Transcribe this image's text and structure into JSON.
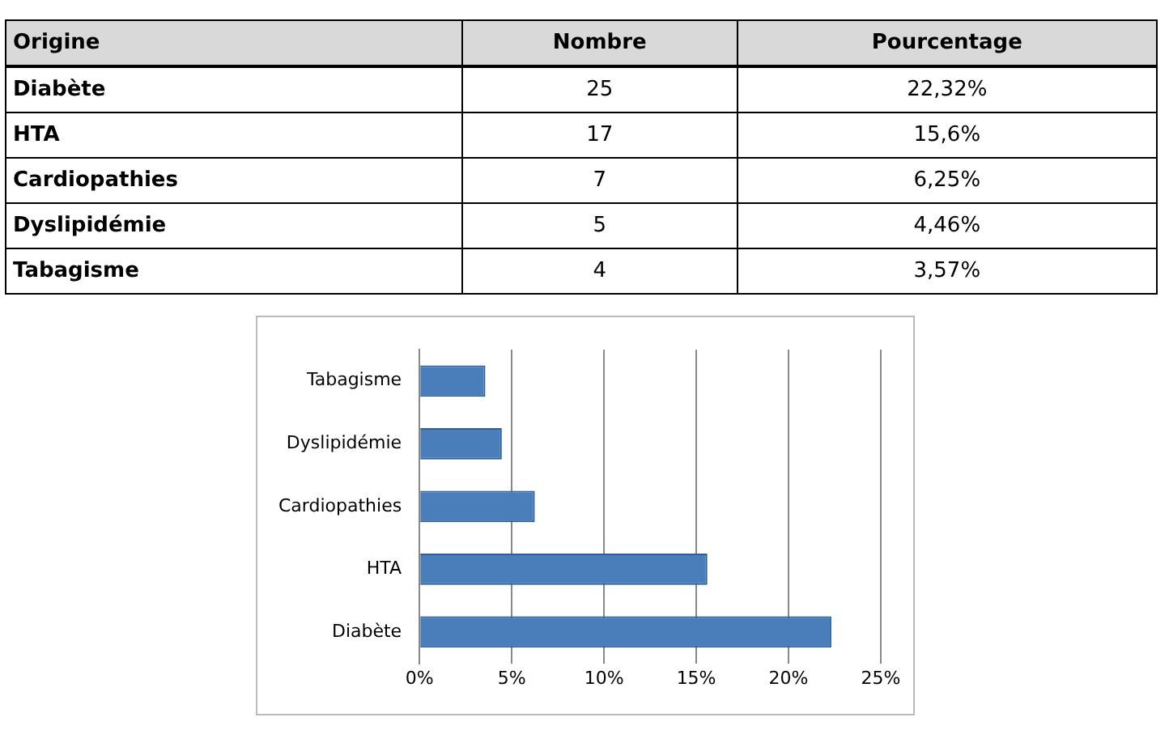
{
  "chart_data": [
    {
      "type": "other",
      "ylabel": "Origine",
      "data_labels": true,
      "categories": [
        "Diabète",
        "HTA",
        "Cardiopathies",
        "Dyslipidémie",
        "Tabagisme"
      ],
      "series": [
        {
          "name": "Nombre",
          "values": [
            25,
            17,
            7,
            5,
            4
          ]
        },
        {
          "name": "Pourcentage",
          "values": [
            22.32,
            15.6,
            6.25,
            4.46,
            3.57
          ],
          "value_labels": [
            "22,32%",
            "15,6%",
            "6,25%",
            "4,46%",
            "3,57%"
          ]
        }
      ]
    },
    {
      "type": "bar",
      "orientation": "horizontal",
      "categories": [
        "Tabagisme",
        "Dyslipidémie",
        "Cardiopathies",
        "HTA",
        "Diabète"
      ],
      "values": [
        3.57,
        4.46,
        6.25,
        15.6,
        22.32
      ],
      "color": "#4a7ebb",
      "xlim": [
        0,
        25
      ],
      "xticks": [
        {
          "value": 0,
          "label": "0%"
        },
        {
          "value": 5,
          "label": "5%"
        },
        {
          "value": 10,
          "label": "10%"
        },
        {
          "value": 15,
          "label": "15%"
        },
        {
          "value": 20,
          "label": "20%"
        },
        {
          "value": 25,
          "label": "25%"
        }
      ],
      "grid": "x"
    }
  ]
}
